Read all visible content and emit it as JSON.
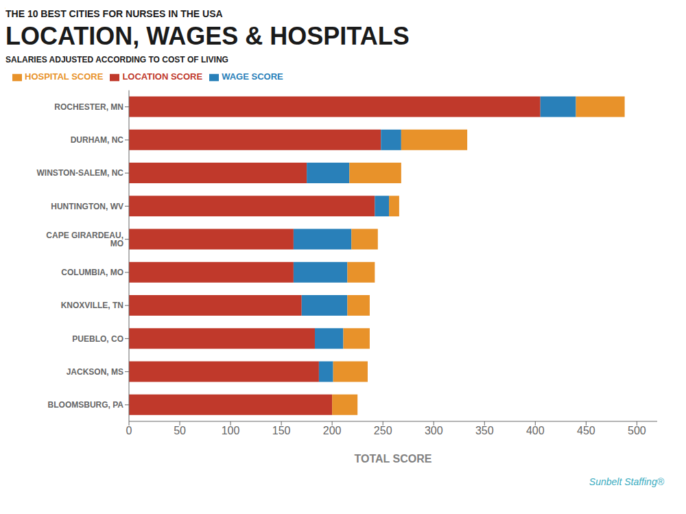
{
  "chart_data": {
    "type": "bar",
    "orientation": "horizontal",
    "stacked": true,
    "title": "LOCATION, WAGES & HOSPITALS",
    "subtitle": "SALARIES ADJUSTED ACCORDING TO COST OF LIVING",
    "annotations": [
      "THE 10 BEST CITIES FOR NURSES IN THE USA",
      "Sunbelt  Staffing®"
    ],
    "xlabel": "TOTAL SCORE",
    "categories": [
      "ROCHESTER, MN",
      "DURHAM, NC",
      "WINSTON-SALEM, NC",
      "HUNTINGTON, WV",
      "CAPE GIRARDEAU, MO",
      "COLUMBIA, MO",
      "KNOXVILLE, TN",
      "PUEBLO, CO",
      "JACKSON, MS",
      "BLOOMSBURG, PA"
    ],
    "series": [
      {
        "name": "LOCATION SCORE",
        "color": "#c0392b",
        "values": [
          405,
          248,
          175,
          242,
          162,
          162,
          170,
          183,
          187,
          200
        ]
      },
      {
        "name": "WAGE SCORE",
        "color": "#2980b9",
        "values": [
          35,
          20,
          42,
          14,
          57,
          53,
          45,
          28,
          14,
          0
        ]
      },
      {
        "name": "HOSPITAL SCORE",
        "color": "#e8922a",
        "values": [
          48,
          65,
          51,
          10,
          26,
          27,
          22,
          26,
          34,
          25
        ]
      }
    ],
    "xlim": [
      0,
      520
    ],
    "xticks": [
      0,
      50,
      100,
      150,
      200,
      250,
      300,
      350,
      400,
      450,
      500
    ],
    "grid": false,
    "legend": "top"
  }
}
